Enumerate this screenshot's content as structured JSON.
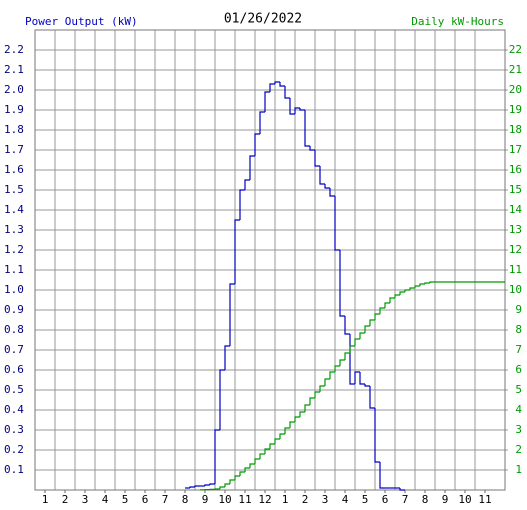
{
  "chart_data": {
    "type": "step",
    "title": "01/26/2022",
    "y_label": "Power Output (kW)",
    "y2_label": "Daily kW-Hours",
    "xlim": [
      0.5,
      24
    ],
    "xticks": [
      1,
      2,
      3,
      4,
      5,
      6,
      7,
      8,
      9,
      10,
      11,
      12,
      {
        "value": 13,
        "label": "1"
      },
      {
        "value": 14,
        "label": "2"
      },
      {
        "value": 15,
        "label": "3"
      },
      {
        "value": 16,
        "label": "4"
      },
      {
        "value": 17,
        "label": "5"
      },
      {
        "value": 18,
        "label": "6"
      },
      {
        "value": 19,
        "label": "7"
      },
      {
        "value": 20,
        "label": "8"
      },
      {
        "value": 21,
        "label": "9"
      },
      {
        "value": 22,
        "label": "10"
      },
      {
        "value": 23,
        "label": "11"
      }
    ],
    "ylim": [
      0,
      2.3
    ],
    "yticks": [
      0.1,
      0.2,
      0.3,
      0.4,
      0.5,
      0.6,
      0.7,
      0.8,
      0.9,
      {
        "value": 1,
        "label": "1.0"
      },
      1.1,
      1.2,
      1.3,
      1.4,
      1.5,
      1.6,
      1.7,
      1.8,
      1.9,
      {
        "value": 2,
        "label": "2.0"
      },
      2.1,
      2.2
    ],
    "y2lim": [
      0,
      23
    ],
    "y2ticks": [
      1,
      2,
      3,
      4,
      5,
      6,
      7,
      8,
      9,
      10,
      11,
      12,
      13,
      14,
      15,
      16,
      17,
      18,
      19,
      20,
      21,
      22
    ],
    "grid": true,
    "series": [
      {
        "color": "#0000c0",
        "x": [
          8,
          8.25,
          8.5,
          8.75,
          9,
          9.25,
          9.5,
          9.75,
          10,
          10.25,
          10.5,
          10.75,
          11,
          11.25,
          11.5,
          11.75,
          12,
          12.25,
          12.5,
          12.75,
          13,
          13.25,
          13.5,
          13.75,
          14,
          14.25,
          14.5,
          14.75,
          15,
          15.25,
          15.5,
          15.75,
          16,
          16.25,
          16.5,
          16.75,
          17,
          17.25,
          17.5,
          17.75,
          18,
          18.25,
          18.5,
          18.75
        ],
        "values": [
          0.01,
          0.015,
          0.02,
          0.02,
          0.025,
          0.03,
          0.3,
          0.6,
          0.72,
          1.03,
          1.35,
          1.5,
          1.55,
          1.67,
          1.78,
          1.89,
          1.99,
          2.03,
          2.04,
          2.02,
          1.96,
          1.88,
          1.91,
          1.9,
          1.72,
          1.7,
          1.62,
          1.53,
          1.51,
          1.47,
          1.2,
          0.87,
          0.78,
          0.53,
          0.59,
          0.53,
          0.52,
          0.41,
          0.14,
          0.01,
          0.01,
          0.01,
          0.01,
          0
        ]
      },
      {
        "color": "#009900",
        "axis": "y2",
        "x": [
          8.75,
          9,
          9.25,
          9.5,
          9.75,
          10,
          10.25,
          10.5,
          10.75,
          11,
          11.25,
          11.5,
          11.75,
          12,
          12.25,
          12.5,
          12.75,
          13,
          13.25,
          13.5,
          13.75,
          14,
          14.25,
          14.5,
          14.75,
          15,
          15.25,
          15.5,
          15.75,
          16,
          16.25,
          16.5,
          16.75,
          17,
          17.25,
          17.5,
          17.75,
          18,
          18.25,
          18.5,
          18.75,
          19,
          19.25,
          19.5,
          19.75,
          20,
          20.25
        ],
        "values": [
          0.01,
          0.02,
          0.03,
          0.05,
          0.15,
          0.3,
          0.5,
          0.7,
          0.9,
          1.1,
          1.3,
          1.55,
          1.8,
          2.05,
          2.3,
          2.55,
          2.8,
          3.1,
          3.4,
          3.65,
          3.9,
          4.25,
          4.6,
          4.9,
          5.2,
          5.55,
          5.9,
          6.2,
          6.5,
          6.85,
          7.2,
          7.55,
          7.85,
          8.2,
          8.5,
          8.8,
          9.1,
          9.35,
          9.6,
          9.75,
          9.9,
          10.0,
          10.1,
          10.2,
          10.3,
          10.35,
          10.4
        ]
      }
    ]
  }
}
